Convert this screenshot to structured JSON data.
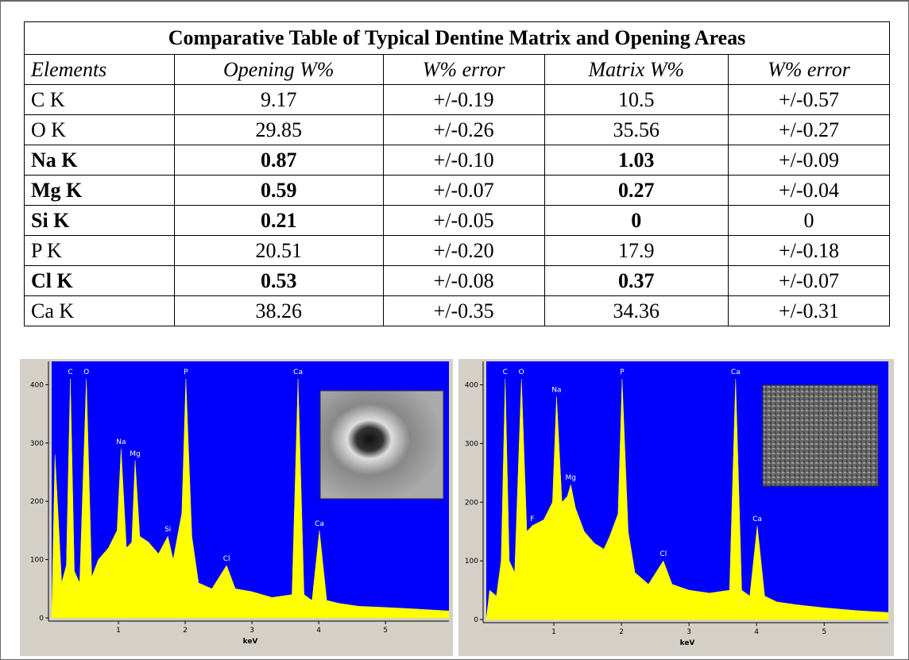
{
  "table": {
    "title": "Comparative Table of Typical Dentine Matrix and Opening Areas",
    "header": [
      "Elements",
      "Opening W%",
      "W% error",
      "Matrix W%",
      "W% error"
    ],
    "rows": [
      {
        "cells": [
          "C K",
          "9.17",
          "+/-0.19",
          "10.5",
          "+/-0.57"
        ],
        "bold": false
      },
      {
        "cells": [
          "O K",
          "29.85",
          "+/-0.26",
          "35.56",
          "+/-0.27"
        ],
        "bold": false
      },
      {
        "cells": [
          "Na K",
          "0.87",
          "+/-0.10",
          "1.03",
          "+/-0.09"
        ],
        "bold": true
      },
      {
        "cells": [
          "Mg K",
          "0.59",
          "+/-0.07",
          "0.27",
          "+/-0.04"
        ],
        "bold": true
      },
      {
        "cells": [
          "Si K",
          "0.21",
          "+/-0.05",
          "0",
          "0"
        ],
        "bold": true
      },
      {
        "cells": [
          "P K",
          "20.51",
          "+/-0.20",
          "17.9",
          "+/-0.18"
        ],
        "bold": false
      },
      {
        "cells": [
          "Cl K",
          "0.53",
          "+/-0.08",
          "0.37",
          "+/-0.07"
        ],
        "bold": true
      },
      {
        "cells": [
          "Ca K",
          "38.26",
          "+/-0.35",
          "34.36",
          "+/-0.31"
        ],
        "bold": false
      }
    ]
  },
  "chart_data": [
    {
      "type": "area",
      "xlabel": "keV",
      "color": "#ffff00",
      "background": "#0000ff",
      "xlim": [
        0,
        5.95
      ],
      "ylim": [
        0,
        440
      ],
      "xticks": [
        1,
        2,
        3,
        4,
        5
      ],
      "yticks": [
        0,
        100,
        200,
        300,
        400
      ],
      "x": [
        0,
        0.05,
        0.15,
        0.22,
        0.28,
        0.34,
        0.42,
        0.52,
        0.6,
        0.7,
        0.85,
        0.98,
        1.04,
        1.12,
        1.2,
        1.25,
        1.32,
        1.45,
        1.6,
        1.74,
        1.82,
        1.95,
        2.01,
        2.1,
        2.2,
        2.4,
        2.62,
        2.75,
        3.0,
        3.3,
        3.6,
        3.69,
        3.78,
        3.9,
        4.01,
        4.12,
        4.3,
        4.6,
        5.0,
        5.5,
        5.95
      ],
      "values": [
        0,
        280,
        60,
        90,
        410,
        80,
        60,
        410,
        70,
        100,
        120,
        150,
        290,
        120,
        130,
        270,
        140,
        130,
        110,
        140,
        100,
        180,
        410,
        140,
        60,
        50,
        90,
        50,
        45,
        35,
        40,
        410,
        40,
        30,
        150,
        30,
        25,
        20,
        18,
        15,
        12
      ],
      "peaks": [
        {
          "label": "C",
          "x": 0.28,
          "y": 410
        },
        {
          "label": "O",
          "x": 0.52,
          "y": 410
        },
        {
          "label": "Na",
          "x": 1.04,
          "y": 290
        },
        {
          "label": "Mg",
          "x": 1.25,
          "y": 270
        },
        {
          "label": "Si",
          "x": 1.74,
          "y": 140
        },
        {
          "label": "P",
          "x": 2.01,
          "y": 410
        },
        {
          "label": "Cl",
          "x": 2.62,
          "y": 90
        },
        {
          "label": "Ca",
          "x": 3.69,
          "y": 410
        },
        {
          "label": "Ca",
          "x": 4.01,
          "y": 150
        }
      ]
    },
    {
      "type": "area",
      "xlabel": "keV",
      "color": "#ffff00",
      "background": "#0000ff",
      "xlim": [
        0,
        5.95
      ],
      "ylim": [
        0,
        440
      ],
      "xticks": [
        1,
        2,
        3,
        4,
        5
      ],
      "yticks": [
        0,
        100,
        200,
        300,
        400
      ],
      "x": [
        0,
        0.05,
        0.15,
        0.22,
        0.28,
        0.34,
        0.42,
        0.52,
        0.6,
        0.68,
        0.85,
        0.98,
        1.04,
        1.12,
        1.2,
        1.25,
        1.32,
        1.45,
        1.6,
        1.74,
        1.82,
        1.95,
        2.01,
        2.1,
        2.2,
        2.4,
        2.62,
        2.75,
        3.0,
        3.3,
        3.6,
        3.69,
        3.78,
        3.9,
        4.01,
        4.12,
        4.3,
        4.6,
        5.0,
        5.5,
        5.95
      ],
      "values": [
        0,
        50,
        40,
        100,
        410,
        100,
        80,
        410,
        150,
        160,
        170,
        200,
        380,
        200,
        210,
        230,
        190,
        150,
        130,
        120,
        140,
        180,
        410,
        150,
        80,
        60,
        100,
        60,
        50,
        45,
        50,
        410,
        50,
        40,
        160,
        40,
        30,
        25,
        20,
        15,
        12
      ],
      "peaks": [
        {
          "label": "C",
          "x": 0.28,
          "y": 410
        },
        {
          "label": "O",
          "x": 0.52,
          "y": 410
        },
        {
          "label": "F",
          "x": 0.68,
          "y": 160
        },
        {
          "label": "Na",
          "x": 1.04,
          "y": 380
        },
        {
          "label": "Mg",
          "x": 1.25,
          "y": 230
        },
        {
          "label": "P",
          "x": 2.01,
          "y": 410
        },
        {
          "label": "Cl",
          "x": 2.62,
          "y": 100
        },
        {
          "label": "Ca",
          "x": 3.69,
          "y": 410
        },
        {
          "label": "Ca",
          "x": 4.01,
          "y": 160
        }
      ]
    }
  ]
}
